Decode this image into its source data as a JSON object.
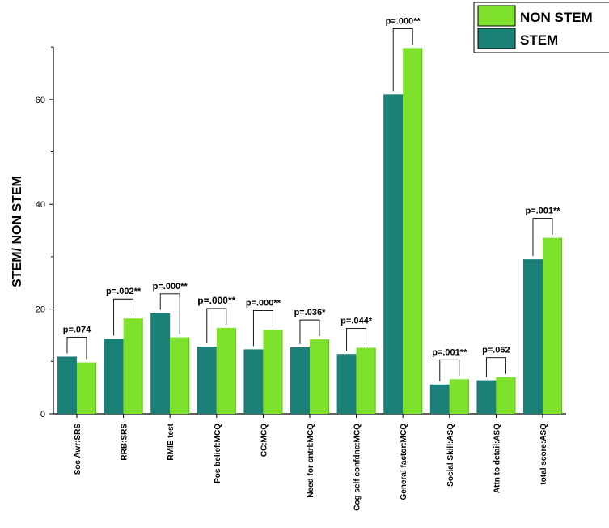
{
  "chart_data": {
    "type": "bar",
    "ylabel": "STEM/ NON STEM",
    "ylim": [
      0,
      70
    ],
    "yticks": [
      0,
      20,
      40,
      60
    ],
    "categories": [
      "Soc Awr:SRS",
      "RRB:SRS",
      "RMIE test",
      "Pos belief:MCQ",
      "CC:MCQ",
      "Need for cntrl:MCQ",
      "Cog self confdnc:MCQ",
      "General factor:MCQ",
      "Social Skill:ASQ",
      "Attn to detail:ASQ",
      "total score:ASQ"
    ],
    "series": [
      {
        "name": "STEM",
        "color": "#1b8077",
        "values": [
          10.9,
          14.3,
          19.2,
          12.8,
          12.3,
          12.7,
          11.4,
          61.0,
          5.6,
          6.4,
          29.5
        ]
      },
      {
        "name": "NON STEM",
        "color": "#7ee22c",
        "values": [
          9.8,
          18.2,
          14.6,
          16.4,
          16.0,
          14.2,
          12.6,
          69.8,
          6.6,
          7.0,
          33.6
        ]
      }
    ],
    "annotations": [
      "p=.074",
      "p=.002**",
      "p=.000**",
      "p=.000**",
      "p=.000**",
      "p=.036*",
      "p=.044*",
      "p=.000**",
      "p=.001**",
      "p=.062",
      "p=.001**"
    ],
    "legend": {
      "position": "top-right",
      "entries": [
        "NON STEM",
        "STEM"
      ]
    }
  }
}
